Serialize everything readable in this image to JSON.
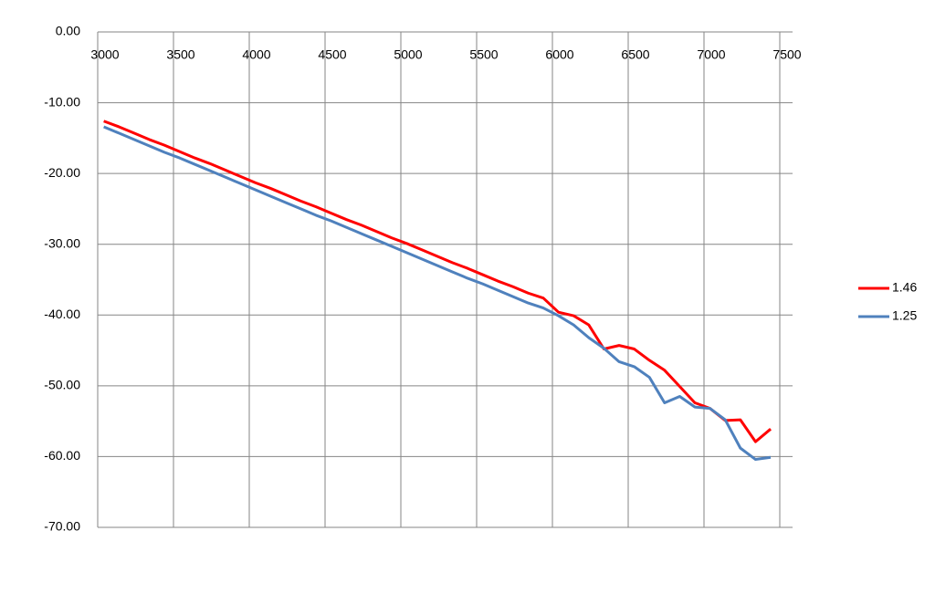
{
  "chart_data": {
    "type": "line",
    "x": [
      3040,
      3140,
      3240,
      3340,
      3440,
      3540,
      3640,
      3740,
      3840,
      3940,
      4040,
      4140,
      4240,
      4340,
      4440,
      4540,
      4640,
      4740,
      4840,
      4940,
      5040,
      5140,
      5240,
      5340,
      5440,
      5540,
      5640,
      5740,
      5840,
      5940,
      6040,
      6140,
      6240,
      6340,
      6440,
      6540,
      6640,
      6740,
      6840,
      6940,
      7040,
      7140,
      7240,
      7340,
      7440
    ],
    "series": [
      {
        "name": "1.46",
        "color": "#ff0000",
        "values": [
          -12.6,
          -13.4,
          -14.3,
          -15.2,
          -16.0,
          -16.9,
          -17.8,
          -18.6,
          -19.5,
          -20.4,
          -21.3,
          -22.1,
          -23.0,
          -23.9,
          -24.7,
          -25.6,
          -26.5,
          -27.3,
          -28.2,
          -29.1,
          -29.9,
          -30.8,
          -31.7,
          -32.6,
          -33.4,
          -34.3,
          -35.2,
          -36.0,
          -36.9,
          -37.6,
          -39.6,
          -40.1,
          -41.4,
          -44.8,
          -44.3,
          -44.8,
          -46.4,
          -47.8,
          -50.1,
          -52.4,
          -53.2,
          -54.9,
          -54.8,
          -57.9,
          -56.1
        ]
      },
      {
        "name": "1.25",
        "color": "#4f81bd",
        "values": [
          -13.4,
          -14.3,
          -15.2,
          -16.1,
          -17.0,
          -17.8,
          -18.7,
          -19.6,
          -20.5,
          -21.4,
          -22.3,
          -23.2,
          -24.1,
          -25.0,
          -25.9,
          -26.7,
          -27.6,
          -28.5,
          -29.4,
          -30.3,
          -31.2,
          -32.1,
          -33.0,
          -33.9,
          -34.8,
          -35.6,
          -36.5,
          -37.4,
          -38.3,
          -39.0,
          -40.1,
          -41.4,
          -43.2,
          -44.7,
          -46.6,
          -47.3,
          -48.8,
          -52.4,
          -51.5,
          -53.0,
          -53.2,
          -54.8,
          -58.8,
          -60.4,
          -60.1
        ]
      }
    ],
    "xlim": [
      3000,
      7500
    ],
    "xticks": [
      3000,
      3500,
      4000,
      4500,
      5000,
      5500,
      6000,
      6500,
      7000,
      7500
    ],
    "ylim": [
      -70,
      0
    ],
    "yticks": [
      {
        "value": 0,
        "label": "0.00"
      },
      {
        "value": -10,
        "label": "-10.00"
      },
      {
        "value": -20,
        "label": "-20.00"
      },
      {
        "value": -30,
        "label": "-30.00"
      },
      {
        "value": -40,
        "label": "-40.00"
      },
      {
        "value": -50,
        "label": "-50.00"
      },
      {
        "value": -60,
        "label": "-60.00"
      },
      {
        "value": -70,
        "label": "-70.00"
      }
    ],
    "grid": true,
    "legend": "right"
  }
}
